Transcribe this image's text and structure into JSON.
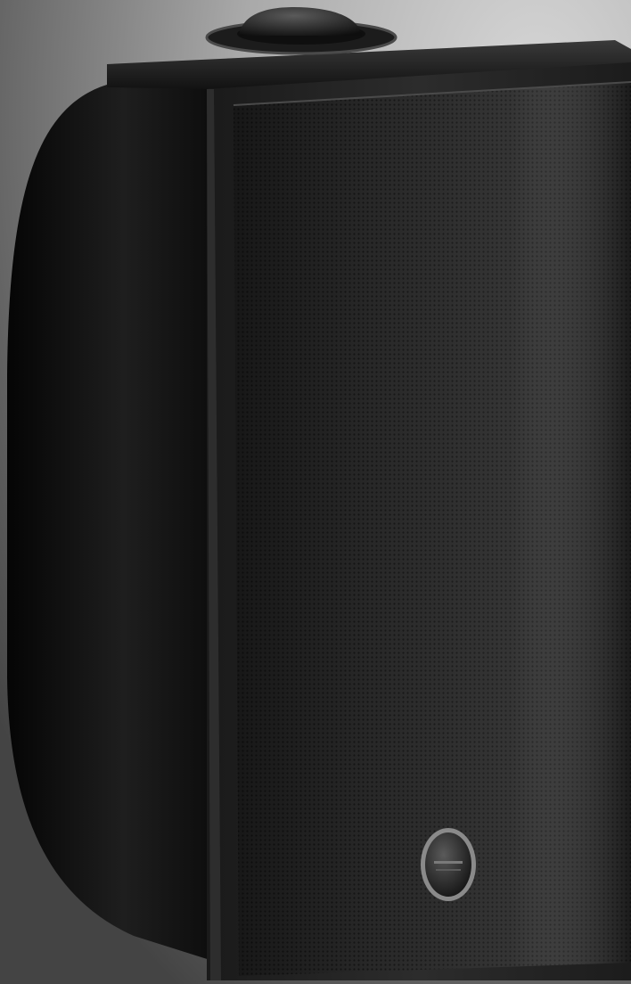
{
  "image": {
    "subject": "wall-mount-speaker",
    "badge_text": "",
    "colors": {
      "background_light": "#c9c9c9",
      "background_dark": "#4a4a4a",
      "cabinet": "#141414",
      "grille": "#262626",
      "badge_ring": "#8a8a8a"
    }
  }
}
